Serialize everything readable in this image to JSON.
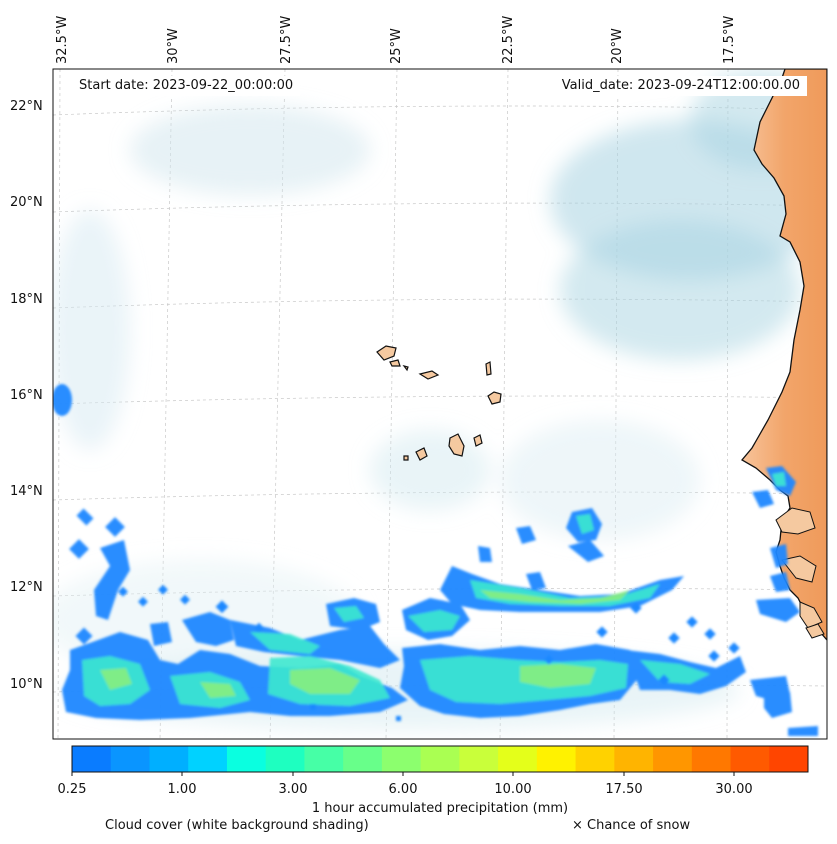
{
  "header": {
    "start_date": "Start date: 2023-09-22_00:00:00",
    "valid_date": "Valid_date: 2023-09-24T12:00:00.00"
  },
  "axes": {
    "lon_labels": [
      "32.5°W",
      "30°W",
      "27.5°W",
      "25°W",
      "22.5°W",
      "20°W",
      "17.5°W"
    ],
    "lat_labels": [
      "22°N",
      "20°N",
      "18°N",
      "16°N",
      "14°N",
      "12°N",
      "10°N"
    ]
  },
  "colorbar": {
    "title": "1 hour accumulated precipitation (mm)",
    "tick_labels": [
      "0.25",
      "1.00",
      "3.00",
      "6.00",
      "10.00",
      "17.50",
      "30.00"
    ],
    "colors": [
      "#0a7cff",
      "#0a95ff",
      "#00afff",
      "#00d2ff",
      "#0affe0",
      "#1effc0",
      "#46ffa6",
      "#68ff8a",
      "#8cff6e",
      "#aaff52",
      "#c9ff3a",
      "#e4ff1a",
      "#fff200",
      "#ffd200",
      "#ffb400",
      "#ff9600",
      "#ff7800",
      "#ff5a00",
      "#ff4500"
    ]
  },
  "legend": {
    "cloud_note": "Cloud cover (white background shading)",
    "snow_note": "× Chance of snow"
  },
  "colors": {
    "land": "#f2a76a",
    "island_fill": "#f5c9a0",
    "cloud_shading": "#a8d4e2",
    "precip_low": "#1e88ff",
    "precip_mid": "#3ee8d0",
    "precip_high": "#8cf07a"
  }
}
